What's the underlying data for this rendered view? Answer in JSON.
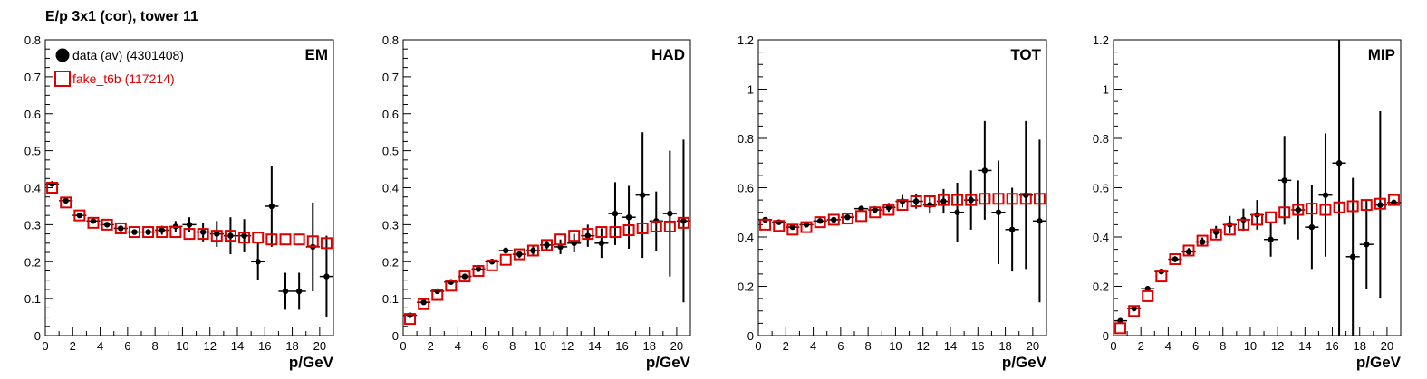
{
  "figure": {
    "title": "E/p 3x1 (cor), tower 11"
  },
  "colors": {
    "data": "#000000",
    "mc": "#dd0000"
  },
  "legend": {
    "entries": [
      {
        "label": "data (av) (4301408)",
        "marker": "filled-circle",
        "color": "#000000"
      },
      {
        "label": "fake_t6b (117214)",
        "marker": "open-square",
        "color": "#dd0000"
      }
    ]
  },
  "chart_data": [
    {
      "type": "scatter",
      "panel_label": "EM",
      "xlabel": "p/GeV",
      "ylabel": "",
      "xlim": [
        0,
        21
      ],
      "ylim": [
        0,
        0.8
      ],
      "xticks": [
        0,
        2,
        4,
        6,
        8,
        10,
        12,
        14,
        16,
        18,
        20
      ],
      "yticks": [
        0,
        0.1,
        0.2,
        0.3,
        0.4,
        0.5,
        0.6,
        0.7,
        0.8
      ],
      "grid": false,
      "legend_position": "top-left",
      "series": [
        {
          "name": "data (av) (4301408)",
          "marker": "filled-circle",
          "x": [
            0.5,
            1.5,
            2.5,
            3.5,
            4.5,
            5.5,
            6.5,
            7.5,
            8.5,
            9.5,
            10.5,
            11.5,
            12.5,
            13.5,
            14.5,
            15.5,
            16.5,
            17.5,
            18.5,
            19.5,
            20.5
          ],
          "y": [
            0.41,
            0.365,
            0.325,
            0.31,
            0.3,
            0.29,
            0.28,
            0.28,
            0.285,
            0.295,
            0.3,
            0.28,
            0.275,
            0.27,
            0.27,
            0.2,
            0.35,
            0.12,
            0.12,
            0.24,
            0.16
          ],
          "yerr": [
            0.005,
            0.005,
            0.005,
            0.005,
            0.005,
            0.005,
            0.005,
            0.008,
            0.012,
            0.015,
            0.02,
            0.025,
            0.035,
            0.05,
            0.045,
            0.05,
            0.11,
            0.05,
            0.05,
            0.12,
            0.11
          ]
        },
        {
          "name": "fake_t6b (117214)",
          "marker": "open-square",
          "x": [
            0.5,
            1.5,
            2.5,
            3.5,
            4.5,
            5.5,
            6.5,
            7.5,
            8.5,
            9.5,
            10.5,
            11.5,
            12.5,
            13.5,
            14.5,
            15.5,
            16.5,
            17.5,
            18.5,
            19.5,
            20.5
          ],
          "y": [
            0.4,
            0.36,
            0.325,
            0.305,
            0.3,
            0.29,
            0.28,
            0.28,
            0.28,
            0.28,
            0.275,
            0.275,
            0.27,
            0.27,
            0.265,
            0.265,
            0.26,
            0.26,
            0.26,
            0.255,
            0.25
          ],
          "yerr": []
        }
      ]
    },
    {
      "type": "scatter",
      "panel_label": "HAD",
      "xlabel": "p/GeV",
      "ylabel": "",
      "xlim": [
        0,
        21
      ],
      "ylim": [
        0,
        0.8
      ],
      "xticks": [
        0,
        2,
        4,
        6,
        8,
        10,
        12,
        14,
        16,
        18,
        20
      ],
      "yticks": [
        0,
        0.1,
        0.2,
        0.3,
        0.4,
        0.5,
        0.6,
        0.7,
        0.8
      ],
      "grid": false,
      "series": [
        {
          "name": "data (av) (4301408)",
          "marker": "filled-circle",
          "x": [
            0.5,
            1.5,
            2.5,
            3.5,
            4.5,
            5.5,
            6.5,
            7.5,
            8.5,
            9.5,
            10.5,
            11.5,
            12.5,
            13.5,
            14.5,
            15.5,
            16.5,
            17.5,
            18.5,
            19.5,
            20.5
          ],
          "y": [
            0.055,
            0.09,
            0.12,
            0.145,
            0.16,
            0.18,
            0.2,
            0.23,
            0.22,
            0.23,
            0.245,
            0.24,
            0.25,
            0.27,
            0.25,
            0.33,
            0.32,
            0.38,
            0.31,
            0.33,
            0.31
          ],
          "yerr": [
            0.003,
            0.003,
            0.004,
            0.004,
            0.005,
            0.005,
            0.006,
            0.008,
            0.01,
            0.012,
            0.015,
            0.02,
            0.025,
            0.03,
            0.04,
            0.085,
            0.085,
            0.17,
            0.08,
            0.17,
            0.22
          ]
        },
        {
          "name": "fake_t6b (117214)",
          "marker": "open-square",
          "x": [
            0.5,
            1.5,
            2.5,
            3.5,
            4.5,
            5.5,
            6.5,
            7.5,
            8.5,
            9.5,
            10.5,
            11.5,
            12.5,
            13.5,
            14.5,
            15.5,
            16.5,
            17.5,
            18.5,
            19.5,
            20.5
          ],
          "y": [
            0.045,
            0.085,
            0.11,
            0.135,
            0.16,
            0.175,
            0.19,
            0.205,
            0.22,
            0.23,
            0.245,
            0.26,
            0.27,
            0.275,
            0.28,
            0.28,
            0.285,
            0.29,
            0.295,
            0.295,
            0.305
          ],
          "yerr": []
        }
      ]
    },
    {
      "type": "scatter",
      "panel_label": "TOT",
      "xlabel": "p/GeV",
      "ylabel": "",
      "xlim": [
        0,
        21
      ],
      "ylim": [
        0,
        1.2
      ],
      "xticks": [
        0,
        2,
        4,
        6,
        8,
        10,
        12,
        14,
        16,
        18,
        20
      ],
      "yticks": [
        0,
        0.2,
        0.4,
        0.6,
        0.8,
        1,
        1.2
      ],
      "grid": false,
      "series": [
        {
          "name": "data (av) (4301408)",
          "marker": "filled-circle",
          "x": [
            0.5,
            1.5,
            2.5,
            3.5,
            4.5,
            5.5,
            6.5,
            7.5,
            8.5,
            9.5,
            10.5,
            11.5,
            12.5,
            13.5,
            14.5,
            15.5,
            16.5,
            17.5,
            18.5,
            19.5,
            20.5
          ],
          "y": [
            0.47,
            0.46,
            0.44,
            0.45,
            0.465,
            0.47,
            0.48,
            0.515,
            0.51,
            0.52,
            0.545,
            0.545,
            0.53,
            0.545,
            0.5,
            0.55,
            0.67,
            0.5,
            0.43,
            0.57,
            0.465
          ],
          "yerr": [
            0.005,
            0.005,
            0.005,
            0.005,
            0.006,
            0.007,
            0.008,
            0.012,
            0.015,
            0.018,
            0.025,
            0.03,
            0.035,
            0.05,
            0.12,
            0.12,
            0.2,
            0.21,
            0.17,
            0.3,
            0.33
          ]
        },
        {
          "name": "fake_t6b (117214)",
          "marker": "open-square",
          "x": [
            0.5,
            1.5,
            2.5,
            3.5,
            4.5,
            5.5,
            6.5,
            7.5,
            8.5,
            9.5,
            10.5,
            11.5,
            12.5,
            13.5,
            14.5,
            15.5,
            16.5,
            17.5,
            18.5,
            19.5,
            20.5
          ],
          "y": [
            0.45,
            0.445,
            0.43,
            0.44,
            0.46,
            0.47,
            0.475,
            0.485,
            0.5,
            0.51,
            0.53,
            0.545,
            0.545,
            0.55,
            0.55,
            0.55,
            0.555,
            0.555,
            0.555,
            0.555,
            0.555
          ],
          "yerr": []
        }
      ]
    },
    {
      "type": "scatter",
      "panel_label": "MIP",
      "xlabel": "p/GeV",
      "ylabel": "",
      "xlim": [
        0,
        21
      ],
      "ylim": [
        0,
        1.2
      ],
      "xticks": [
        0,
        2,
        4,
        6,
        8,
        10,
        12,
        14,
        16,
        18,
        20
      ],
      "yticks": [
        0,
        0.2,
        0.4,
        0.6,
        0.8,
        1,
        1.2
      ],
      "grid": false,
      "series": [
        {
          "name": "data (av) (4301408)",
          "marker": "filled-circle",
          "x": [
            0.5,
            1.5,
            2.5,
            3.5,
            4.5,
            5.5,
            6.5,
            7.5,
            8.5,
            9.5,
            10.5,
            11.5,
            12.5,
            13.5,
            14.5,
            15.5,
            16.5,
            17.5,
            18.5,
            19.5,
            20.5
          ],
          "y": [
            0.06,
            0.11,
            0.19,
            0.26,
            0.31,
            0.34,
            0.38,
            0.42,
            0.45,
            0.47,
            0.49,
            0.39,
            0.63,
            0.51,
            0.44,
            0.57,
            0.7,
            0.32,
            0.37,
            0.53,
            0.54
          ],
          "yerr": [
            0.005,
            0.006,
            0.007,
            0.01,
            0.012,
            0.015,
            0.018,
            0.025,
            0.035,
            0.045,
            0.06,
            0.07,
            0.18,
            0.12,
            0.17,
            0.25,
            0.9,
            0.32,
            0.18,
            0.38,
            0.0
          ]
        },
        {
          "name": "fake_t6b (117214)",
          "marker": "open-square",
          "x": [
            0.5,
            1.5,
            2.5,
            3.5,
            4.5,
            5.5,
            6.5,
            7.5,
            8.5,
            9.5,
            10.5,
            11.5,
            12.5,
            13.5,
            14.5,
            15.5,
            16.5,
            17.5,
            18.5,
            19.5,
            20.5
          ],
          "y": [
            0.03,
            0.1,
            0.16,
            0.24,
            0.31,
            0.345,
            0.385,
            0.41,
            0.43,
            0.45,
            0.47,
            0.48,
            0.5,
            0.51,
            0.515,
            0.51,
            0.52,
            0.525,
            0.53,
            0.535,
            0.55
          ],
          "yerr": []
        }
      ]
    }
  ]
}
